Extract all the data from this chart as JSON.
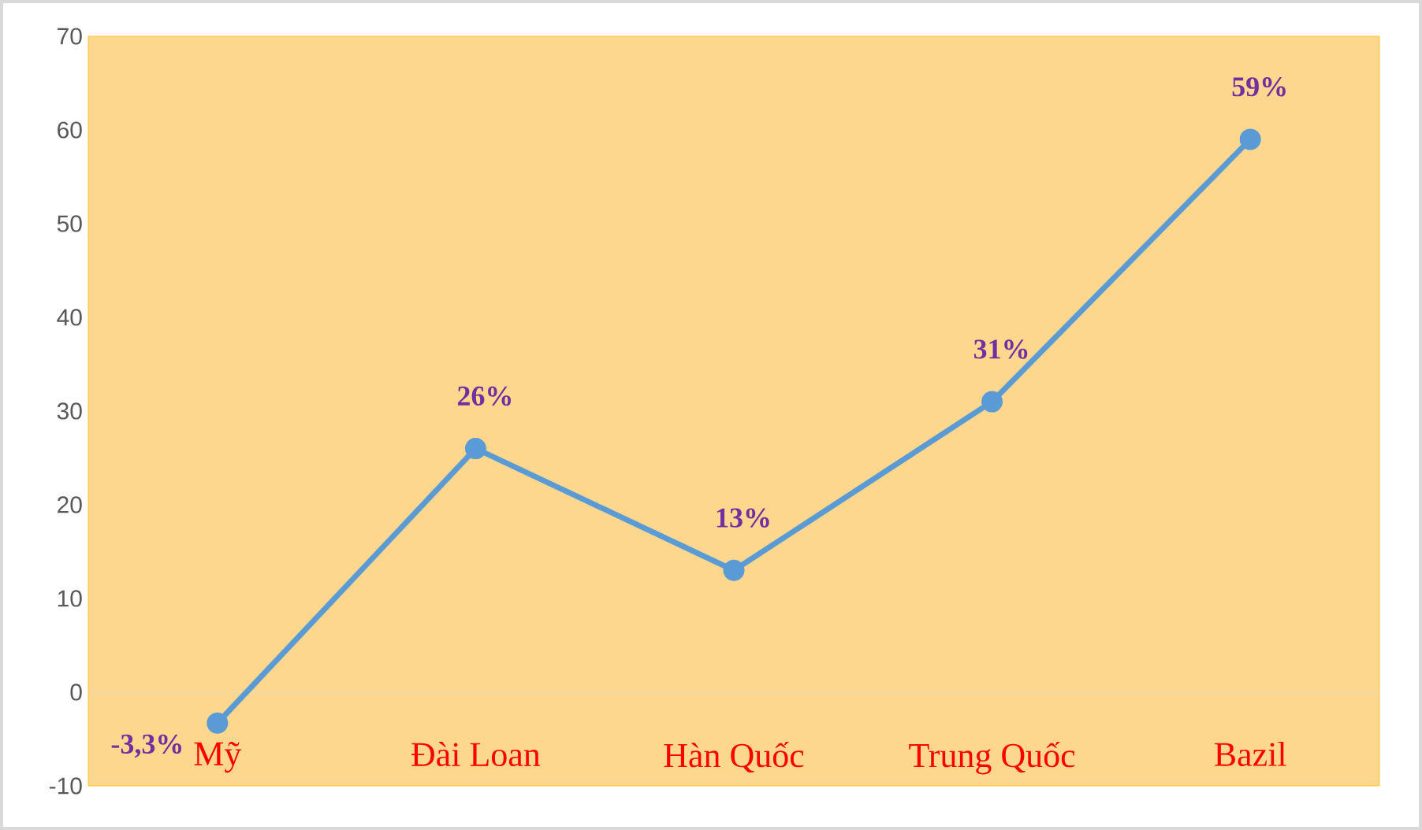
{
  "chart_data": {
    "type": "line",
    "categories": [
      "Mỹ",
      "Đài Loan",
      "Hàn Quốc",
      "Trung Quốc",
      "Bazil"
    ],
    "series": [
      {
        "color": "#5b9bd5",
        "values": [
          -3.3,
          26,
          13,
          31,
          59
        ],
        "value_labels": [
          "-3,3%",
          "26%",
          "13%",
          "31%",
          "59%"
        ]
      }
    ],
    "ylim": [
      -10,
      70
    ],
    "yticks": [
      -10,
      0,
      10,
      20,
      30,
      40,
      50,
      60,
      70
    ],
    "ref_lines": [
      {
        "axis": "y",
        "value": 0,
        "color": "#d9d9d9"
      }
    ],
    "marker": "circle",
    "line_style": "solid"
  }
}
